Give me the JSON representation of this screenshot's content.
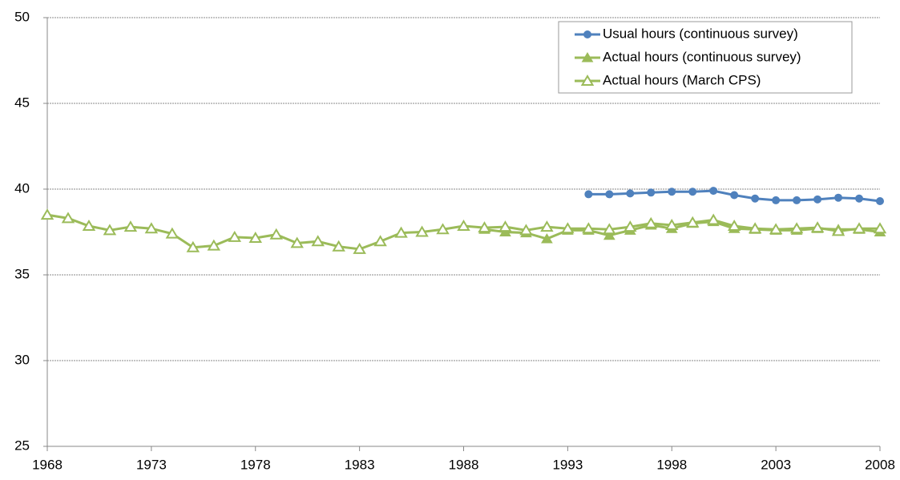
{
  "chart_data": {
    "type": "line",
    "x": [
      1968,
      1969,
      1970,
      1971,
      1972,
      1973,
      1974,
      1975,
      1976,
      1977,
      1978,
      1979,
      1980,
      1981,
      1982,
      1983,
      1984,
      1985,
      1986,
      1987,
      1988,
      1989,
      1990,
      1991,
      1992,
      1993,
      1994,
      1995,
      1996,
      1997,
      1998,
      1999,
      2000,
      2001,
      2002,
      2003,
      2004,
      2005,
      2006,
      2007,
      2008
    ],
    "xlim": [
      1968,
      2008
    ],
    "xticks": [
      1968,
      1973,
      1978,
      1983,
      1988,
      1993,
      1998,
      2003,
      2008
    ],
    "ylim": [
      25,
      50
    ],
    "yticks": [
      25,
      30,
      35,
      40,
      45,
      50
    ],
    "grid": true,
    "legend": "top-right",
    "series": [
      {
        "name": "Usual hours (continuous survey)",
        "color": "#4f81bd",
        "marker": "circle",
        "values": [
          null,
          null,
          null,
          null,
          null,
          null,
          null,
          null,
          null,
          null,
          null,
          null,
          null,
          null,
          null,
          null,
          null,
          null,
          null,
          null,
          null,
          null,
          null,
          null,
          null,
          null,
          39.7,
          39.7,
          39.75,
          39.8,
          39.85,
          39.85,
          39.9,
          39.65,
          39.45,
          39.35,
          39.35,
          39.4,
          39.5,
          39.45,
          39.3
        ]
      },
      {
        "name": "Actual hours (continuous survey)",
        "color": "#9bbb59",
        "marker": "triangle",
        "values": [
          null,
          null,
          null,
          null,
          null,
          null,
          null,
          null,
          null,
          null,
          null,
          null,
          null,
          null,
          null,
          null,
          null,
          null,
          null,
          null,
          null,
          37.65,
          37.5,
          37.45,
          37.1,
          37.6,
          37.6,
          37.3,
          37.6,
          37.9,
          37.7,
          38.0,
          38.1,
          37.7,
          37.65,
          37.6,
          37.6,
          37.7,
          37.65,
          37.65,
          37.5
        ]
      },
      {
        "name": "Actual hours (March CPS)",
        "color": "#9bbb59",
        "marker": "triangle-open",
        "values": [
          38.5,
          38.3,
          37.85,
          37.6,
          37.8,
          37.7,
          37.4,
          36.6,
          36.7,
          37.2,
          37.15,
          37.35,
          36.85,
          36.95,
          36.65,
          36.5,
          36.95,
          37.45,
          37.5,
          37.65,
          37.85,
          37.75,
          37.8,
          37.6,
          37.8,
          37.7,
          37.7,
          37.65,
          37.8,
          38.0,
          37.9,
          38.05,
          38.2,
          37.85,
          37.7,
          37.65,
          37.7,
          37.75,
          37.55,
          37.7,
          37.7
        ]
      }
    ]
  }
}
